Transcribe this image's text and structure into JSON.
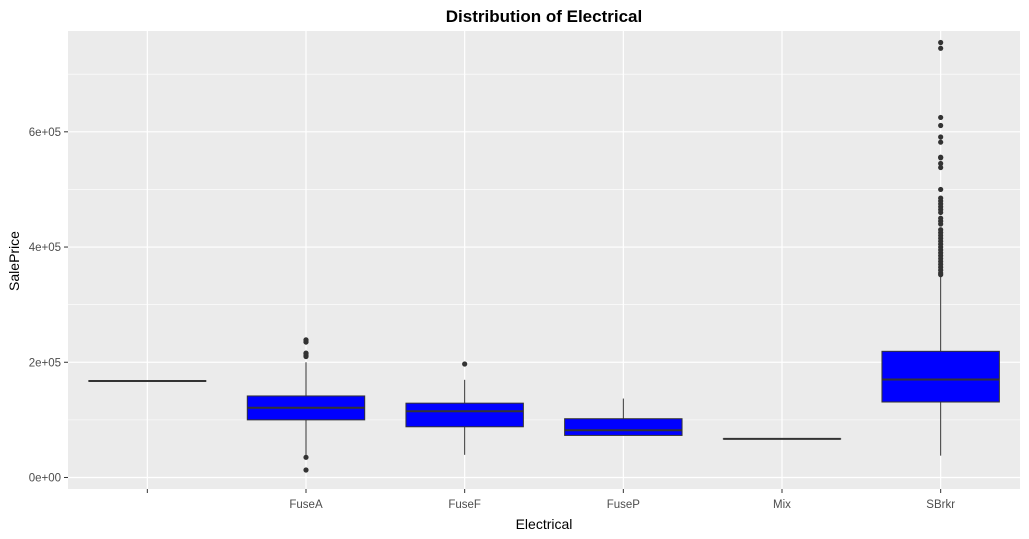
{
  "chart_data": {
    "type": "boxplot",
    "title": "Distribution of Electrical",
    "xlabel": "Electrical",
    "ylabel": "SalePrice",
    "categories": [
      "",
      "FuseA",
      "FuseF",
      "FuseP",
      "Mix",
      "SBrkr"
    ],
    "ylim": [
      -20000,
      775000
    ],
    "yticks": [
      0,
      200000,
      400000,
      600000
    ],
    "ytick_labels": [
      "0e+00",
      "2e+05",
      "4e+05",
      "6e+05"
    ],
    "grid": true,
    "fill_color": "#0000FF",
    "outline_color": "#333333",
    "background_color": "#EBEBEB",
    "boxes": [
      {
        "category": "",
        "min": 167500,
        "q1": 167500,
        "median": 167500,
        "q3": 167500,
        "max": 167500,
        "outliers": []
      },
      {
        "category": "FuseA",
        "min": 34900,
        "q1": 100000,
        "median": 121000,
        "q3": 141500,
        "max": 200000,
        "outliers": [
          13000,
          35000,
          210000,
          212000,
          215000,
          216000,
          235000,
          237000,
          239000
        ]
      },
      {
        "category": "FuseF",
        "min": 39300,
        "q1": 88000,
        "median": 115000,
        "q3": 129000,
        "max": 169500,
        "outliers": [
          197000
        ]
      },
      {
        "category": "FuseP",
        "min": 73000,
        "q1": 73000,
        "median": 82000,
        "q3": 102000,
        "max": 137000,
        "outliers": []
      },
      {
        "category": "Mix",
        "min": 67000,
        "q1": 67000,
        "median": 67000,
        "q3": 67000,
        "max": 67000,
        "outliers": []
      },
      {
        "category": "SBrkr",
        "min": 37900,
        "q1": 131000,
        "median": 170000,
        "q3": 219000,
        "max": 350000,
        "outliers": [
          352000,
          355000,
          360000,
          365000,
          370000,
          375000,
          380000,
          385000,
          390000,
          395000,
          400000,
          405000,
          410000,
          415000,
          420000,
          425000,
          430000,
          440000,
          445000,
          450000,
          460000,
          465000,
          470000,
          475000,
          480000,
          485000,
          500000,
          538000,
          545000,
          555000,
          556000,
          582000,
          591000,
          611000,
          625000,
          745000,
          755000
        ]
      }
    ]
  }
}
